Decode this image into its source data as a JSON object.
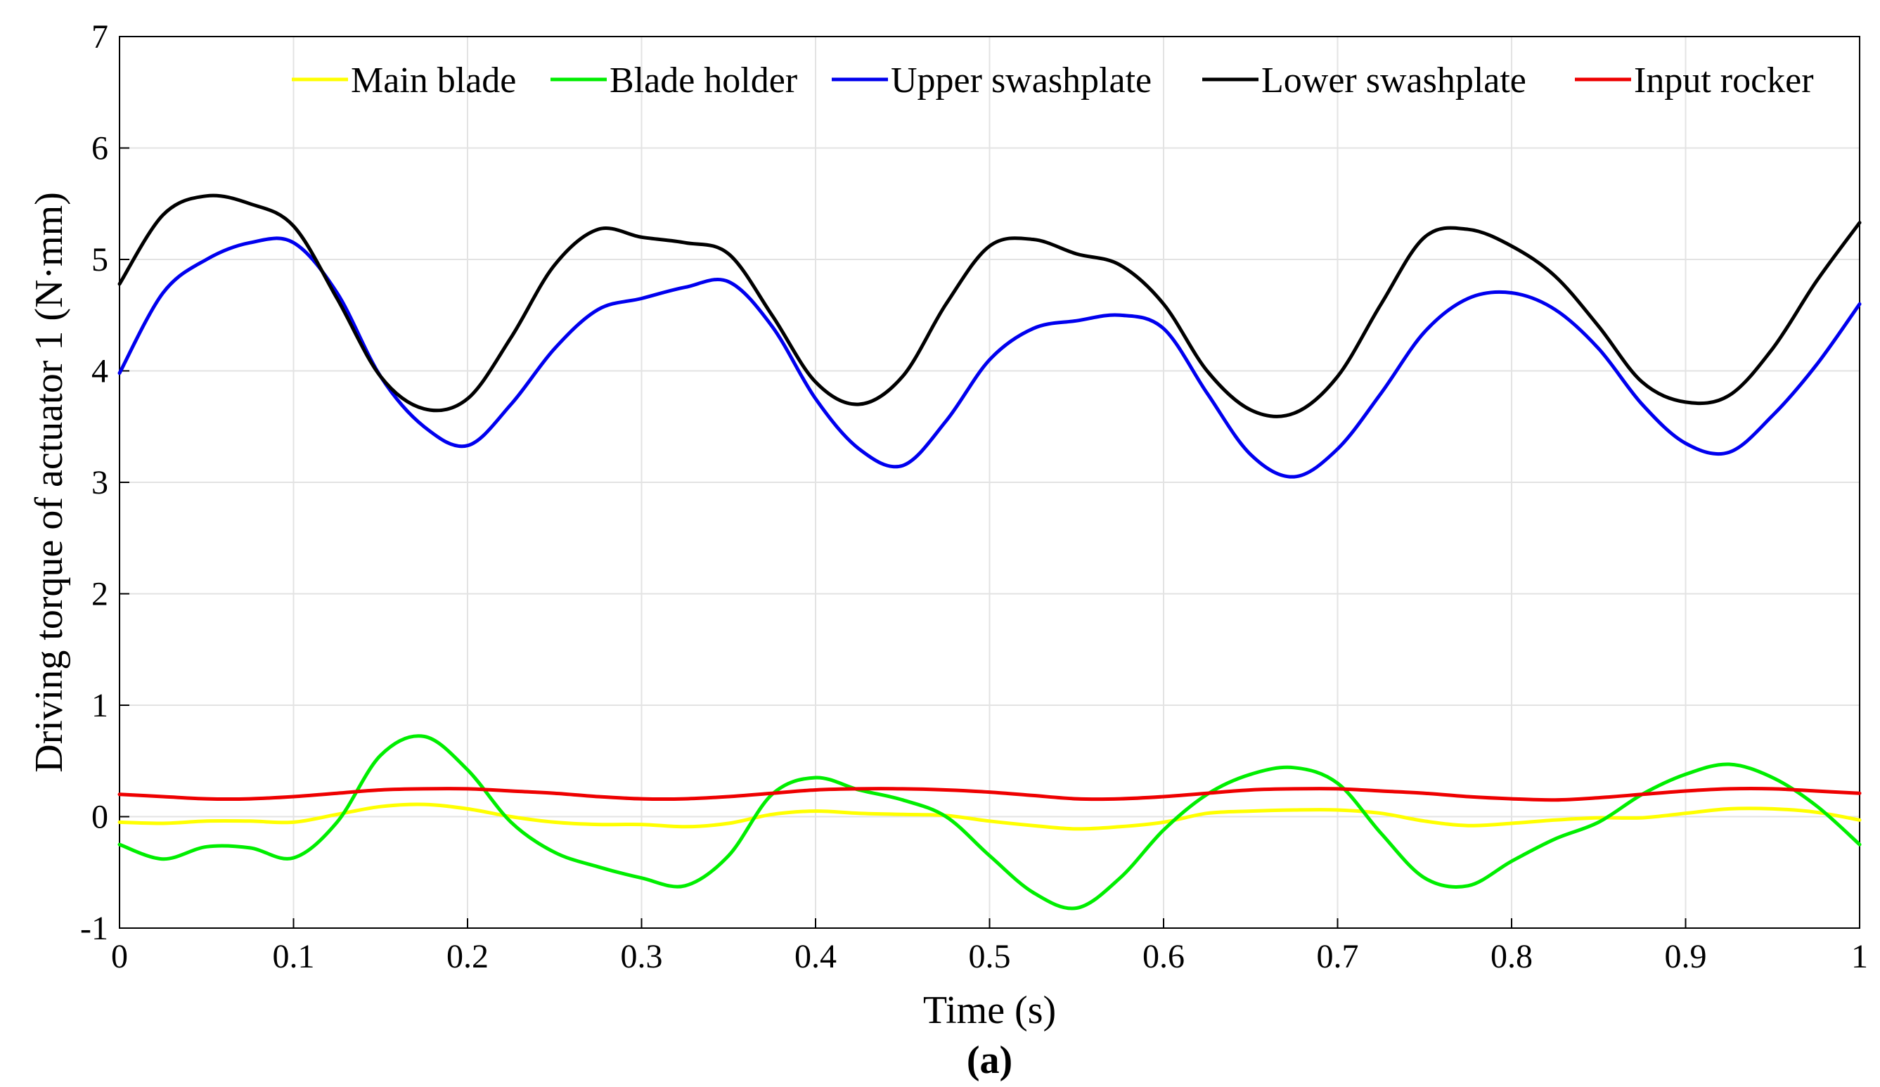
{
  "chart_data": {
    "type": "line",
    "title": "",
    "xlabel": "Time (s)",
    "ylabel": "Driving torque of actuator 1 (N·mm)",
    "panel_label": "(a)",
    "xlim": [
      0,
      1
    ],
    "ylim": [
      -1,
      7
    ],
    "xticks": [
      0,
      0.1,
      0.2,
      0.3,
      0.4,
      0.5,
      0.6,
      0.7,
      0.8,
      0.9,
      1
    ],
    "xtick_labels": [
      "0",
      "0.1",
      "0.2",
      "0.3",
      "0.4",
      "0.5",
      "0.6",
      "0.7",
      "0.8",
      "0.9",
      "1"
    ],
    "yticks": [
      -1,
      0,
      1,
      2,
      3,
      4,
      5,
      6,
      7
    ],
    "ytick_labels": [
      "-1",
      "0",
      "1",
      "2",
      "3",
      "4",
      "5",
      "6",
      "7"
    ],
    "grid": true,
    "legend_position": "top, horizontal",
    "x": [
      0,
      0.025,
      0.05,
      0.075,
      0.1,
      0.125,
      0.15,
      0.175,
      0.2,
      0.225,
      0.25,
      0.275,
      0.3,
      0.325,
      0.35,
      0.375,
      0.4,
      0.425,
      0.45,
      0.475,
      0.5,
      0.525,
      0.55,
      0.575,
      0.6,
      0.625,
      0.65,
      0.675,
      0.7,
      0.725,
      0.75,
      0.775,
      0.8,
      0.825,
      0.85,
      0.875,
      0.9,
      0.925,
      0.95,
      0.975,
      1
    ],
    "series": [
      {
        "name": "Main blade",
        "color": "#ffff00",
        "values": [
          -0.05,
          -0.06,
          -0.04,
          -0.04,
          -0.05,
          0.02,
          0.09,
          0.11,
          0.07,
          0.0,
          -0.05,
          -0.07,
          -0.07,
          -0.09,
          -0.06,
          0.02,
          0.05,
          0.03,
          0.02,
          0.01,
          -0.04,
          -0.08,
          -0.11,
          -0.09,
          -0.05,
          0.03,
          0.05,
          0.06,
          0.06,
          0.03,
          -0.04,
          -0.08,
          -0.06,
          -0.03,
          -0.01,
          -0.01,
          0.03,
          0.07,
          0.07,
          0.04,
          -0.03
        ]
      },
      {
        "name": "Blade holder",
        "color": "#00ee00",
        "values": [
          -0.25,
          -0.38,
          -0.27,
          -0.28,
          -0.37,
          -0.05,
          0.55,
          0.72,
          0.42,
          -0.05,
          -0.32,
          -0.45,
          -0.55,
          -0.62,
          -0.35,
          0.2,
          0.35,
          0.24,
          0.15,
          0.0,
          -0.35,
          -0.68,
          -0.82,
          -0.55,
          -0.12,
          0.2,
          0.38,
          0.44,
          0.3,
          -0.15,
          -0.55,
          -0.62,
          -0.4,
          -0.2,
          -0.05,
          0.2,
          0.38,
          0.47,
          0.35,
          0.1,
          -0.25
        ]
      },
      {
        "name": "Upper swashplate",
        "color": "#0000ee",
        "values": [
          3.98,
          4.7,
          5.0,
          5.15,
          5.15,
          4.7,
          3.95,
          3.5,
          3.33,
          3.7,
          4.2,
          4.55,
          4.65,
          4.75,
          4.8,
          4.4,
          3.75,
          3.3,
          3.15,
          3.55,
          4.1,
          4.38,
          4.45,
          4.5,
          4.38,
          3.8,
          3.25,
          3.05,
          3.3,
          3.8,
          4.35,
          4.65,
          4.7,
          4.55,
          4.2,
          3.7,
          3.35,
          3.27,
          3.6,
          4.05,
          4.6
        ]
      },
      {
        "name": "Lower swashplate",
        "color": "#000000",
        "values": [
          4.78,
          5.4,
          5.57,
          5.5,
          5.3,
          4.65,
          3.95,
          3.66,
          3.75,
          4.3,
          4.95,
          5.27,
          5.2,
          5.15,
          5.05,
          4.5,
          3.9,
          3.7,
          3.95,
          4.6,
          5.12,
          5.18,
          5.05,
          4.95,
          4.6,
          4.0,
          3.65,
          3.62,
          3.95,
          4.6,
          5.2,
          5.27,
          5.12,
          4.85,
          4.4,
          3.9,
          3.72,
          3.78,
          4.2,
          4.8,
          5.33
        ]
      },
      {
        "name": "Input rocker",
        "color": "#ee0000",
        "values": [
          0.2,
          0.18,
          0.16,
          0.16,
          0.18,
          0.21,
          0.24,
          0.25,
          0.25,
          0.23,
          0.21,
          0.18,
          0.16,
          0.16,
          0.18,
          0.21,
          0.24,
          0.25,
          0.25,
          0.24,
          0.22,
          0.19,
          0.16,
          0.16,
          0.18,
          0.21,
          0.24,
          0.25,
          0.25,
          0.23,
          0.21,
          0.18,
          0.16,
          0.15,
          0.17,
          0.2,
          0.23,
          0.25,
          0.25,
          0.23,
          0.21
        ]
      }
    ]
  }
}
